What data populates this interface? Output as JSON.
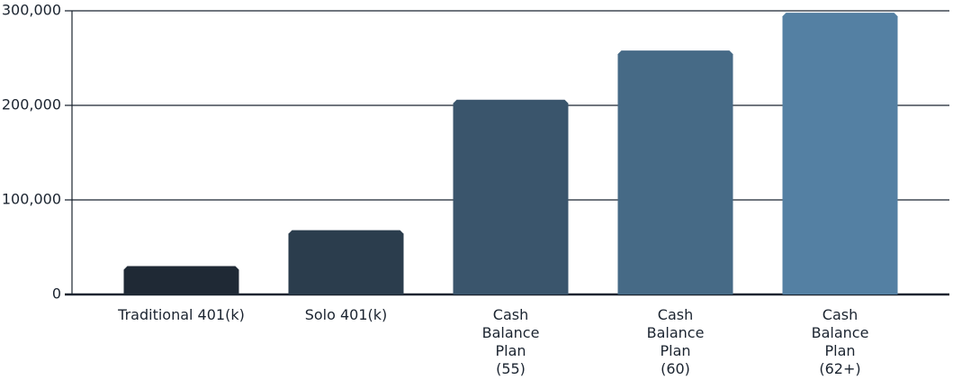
{
  "chart_data": {
    "type": "bar",
    "categories": [
      "Traditional 401(k)",
      "Solo 401(k)",
      "Cash\nBalance\nPlan\n(55)",
      "Cash\nBalance\nPlan\n(60)",
      "Cash\nBalance\nPlan\n(62+)"
    ],
    "values": [
      30000,
      68000,
      206000,
      258000,
      298000
    ],
    "colors": [
      "#1f2935",
      "#2b3d4d",
      "#3a556c",
      "#466a86",
      "#5480a3"
    ],
    "ylim": [
      0,
      300000
    ],
    "yticks": [
      0,
      {
        "value": 100000,
        "label": "100,000"
      },
      {
        "value": 200000,
        "label": "200,000"
      },
      {
        "value": 300000,
        "label": "300,000"
      }
    ],
    "grid": true
  }
}
